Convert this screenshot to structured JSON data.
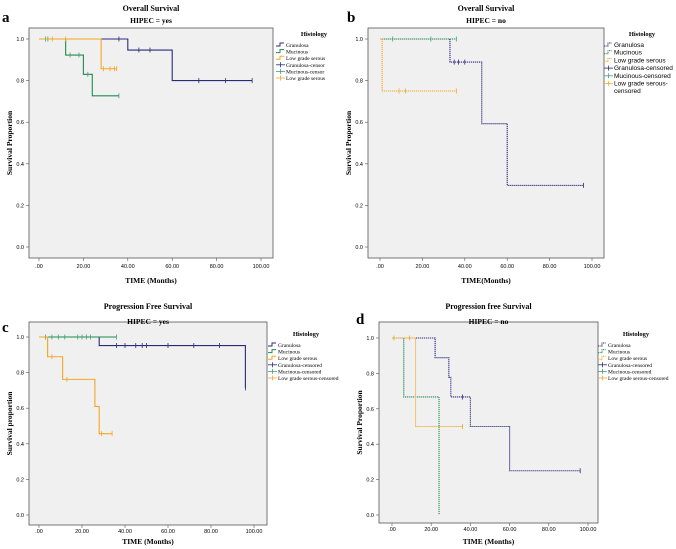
{
  "colors": {
    "granulosa": "#2b2a7a",
    "mucinous": "#1f8c4c",
    "mucinous_censored": "#3aa37a",
    "low_grade_serous": "#f5a623",
    "plot_bg": "#f0f0f0"
  },
  "chart_data": [
    {
      "panel": "a",
      "type": "line",
      "step": true,
      "title": "Overall Survival",
      "subtitle": "HIPEC = yes",
      "xlabel": "TIME (Months)",
      "ylabel": "Survival Proportion",
      "xlim": [
        0,
        100
      ],
      "ylim": [
        0,
        1
      ],
      "xticks": [
        ".00",
        "20.00",
        "40.00",
        "60.00",
        "80.00",
        "100.00"
      ],
      "yticks": [
        "0.0",
        "0.2",
        "0.4",
        "0.6",
        "0.8",
        "1.0"
      ],
      "line_style": "solid",
      "legend_title": "Histology",
      "legend_position": "right",
      "legend": [
        "Granulosa",
        "Mucinous",
        "Low grade serous",
        "Granulosa-censor",
        "Mucinous-censor",
        "Low grade serous"
      ],
      "series": [
        {
          "name": "Granulosa",
          "color_key": "granulosa",
          "steps": [
            [
              0,
              1.0
            ],
            [
              40,
              0.947
            ],
            [
              60,
              0.8
            ]
          ],
          "end": 96,
          "censored": [
            [
              36,
              1.0
            ],
            [
              45,
              0.947
            ],
            [
              50,
              0.947
            ],
            [
              72,
              0.8
            ],
            [
              84,
              0.8
            ],
            [
              96,
              0.8
            ]
          ]
        },
        {
          "name": "Mucinous",
          "color_key": "mucinous",
          "steps": [
            [
              0,
              1.0
            ],
            [
              12,
              0.923
            ],
            [
              20,
              0.83
            ],
            [
              24,
              0.727
            ]
          ],
          "end": 36,
          "censored": [
            [
              3,
              1.0
            ],
            [
              4,
              1.0
            ],
            [
              14,
              0.923
            ],
            [
              18,
              0.923
            ],
            [
              22,
              0.83
            ],
            [
              36,
              0.727
            ]
          ]
        },
        {
          "name": "Low grade serous",
          "color_key": "low_grade_serous",
          "steps": [
            [
              0,
              1.0
            ],
            [
              28,
              0.857
            ]
          ],
          "end": 35,
          "censored": [
            [
              6,
              1.0
            ],
            [
              12,
              1.0
            ],
            [
              29,
              0.857
            ],
            [
              32,
              0.857
            ],
            [
              34,
              0.857
            ],
            [
              35,
              0.857
            ]
          ]
        }
      ]
    },
    {
      "panel": "b",
      "type": "line",
      "step": true,
      "title": "Overall Survival",
      "subtitle": "HIPEC = no",
      "xlabel": "TIME(Months)",
      "ylabel": "Survival Proportion",
      "xlim": [
        0,
        100
      ],
      "ylim": [
        0,
        1
      ],
      "xticks": [
        ".00",
        "20.00",
        "40.00",
        "60.00",
        "80.00",
        "100.00"
      ],
      "yticks": [
        "0.0",
        "0.2",
        "0.4",
        "0.6",
        "0.8",
        "1.0"
      ],
      "line_style": "dotted",
      "legend_title": "Histology",
      "legend_position": "right",
      "legend": [
        "Granulosa",
        "Mucinous",
        "Low grade serous",
        "Granulosa-censored",
        "Mucinous-censored",
        "Low grade serous-",
        "censored"
      ],
      "series": [
        {
          "name": "Granulosa",
          "color_key": "granulosa",
          "steps": [
            [
              0,
              1.0
            ],
            [
              33,
              0.889
            ],
            [
              48,
              0.593
            ],
            [
              60,
              0.296
            ]
          ],
          "end": 96,
          "censored": [
            [
              35,
              0.889
            ],
            [
              37,
              0.889
            ],
            [
              40,
              0.889
            ],
            [
              96,
              0.296
            ]
          ]
        },
        {
          "name": "Mucinous",
          "color_key": "mucinous",
          "steps": [
            [
              0,
              1.0
            ]
          ],
          "end": 36,
          "censored": [
            [
              6,
              1.0
            ],
            [
              24,
              1.0
            ],
            [
              36,
              1.0
            ]
          ]
        },
        {
          "name": "Low grade serous",
          "color_key": "low_grade_serous",
          "steps": [
            [
              0,
              1.0
            ],
            [
              1,
              0.75
            ]
          ],
          "end": 36,
          "censored": [
            [
              9,
              0.75
            ],
            [
              12,
              0.75
            ],
            [
              36,
              0.75
            ]
          ]
        }
      ]
    },
    {
      "panel": "c",
      "type": "line",
      "step": true,
      "title": "Progression Free Survival",
      "subtitle": "HIPEC = yes",
      "xlabel": "TIME (Months)",
      "ylabel": "Survival proportion",
      "xlim": [
        0,
        100
      ],
      "ylim": [
        0,
        1
      ],
      "xticks": [
        ".00",
        "20.00",
        "40.00",
        "60.00",
        "80.00",
        "100.00"
      ],
      "yticks": [
        "0.0",
        "0.2",
        "0.4",
        "0.6",
        "0.8",
        "1.0"
      ],
      "line_style": "solid",
      "legend_title": "Histology",
      "legend_position": "right",
      "legend": [
        "Granulosa",
        "Mucinous",
        "Low grade serous",
        "Granulosa-censored",
        "Mucinous-censored",
        "Low grade serous-censored"
      ],
      "series": [
        {
          "name": "Granulosa",
          "color_key": "granulosa",
          "steps": [
            [
              0,
              1.0
            ],
            [
              28,
              0.952
            ],
            [
              96,
              0.714
            ]
          ],
          "end": 96,
          "censored": [
            [
              36,
              0.952
            ],
            [
              40,
              0.952
            ],
            [
              45,
              0.952
            ],
            [
              48,
              0.952
            ],
            [
              50,
              0.952
            ],
            [
              60,
              0.952
            ],
            [
              72,
              0.952
            ],
            [
              84,
              0.952
            ],
            [
              96,
              0.714
            ]
          ]
        },
        {
          "name": "Mucinous",
          "color_key": "mucinous",
          "steps": [
            [
              0,
              1.0
            ]
          ],
          "end": 36,
          "censored": [
            [
              3,
              1.0
            ],
            [
              6,
              1.0
            ],
            [
              9,
              1.0
            ],
            [
              12,
              1.0
            ],
            [
              18,
              1.0
            ],
            [
              20,
              1.0
            ],
            [
              22,
              1.0
            ],
            [
              24,
              1.0
            ],
            [
              36,
              1.0
            ]
          ]
        },
        {
          "name": "Low grade serous",
          "color_key": "low_grade_serous",
          "steps": [
            [
              0,
              1.0
            ],
            [
              4,
              0.889
            ],
            [
              11,
              0.762
            ],
            [
              26,
              0.61
            ],
            [
              28,
              0.457
            ]
          ],
          "end": 34,
          "censored": [
            [
              6,
              0.889
            ],
            [
              13,
              0.762
            ],
            [
              29,
              0.457
            ],
            [
              34,
              0.457
            ]
          ]
        }
      ]
    },
    {
      "panel": "d",
      "type": "line",
      "step": true,
      "title": "Progression free Survival",
      "subtitle": "HIPEC = no",
      "xlabel": "TIME (Months)",
      "ylabel": "Survival Proportion",
      "xlim": [
        0,
        100
      ],
      "ylim": [
        0,
        1
      ],
      "xticks": [
        ".00",
        "20.00",
        "40.00",
        "60.00",
        "80.00",
        "100.00"
      ],
      "yticks": [
        "0.0",
        "0.2",
        "0.4",
        "0.6",
        "0.8",
        "1.0"
      ],
      "line_style": "dotted",
      "legend_title": "Histology",
      "legend_position": "right",
      "legend": [
        "Granulosa",
        "Mucinous",
        "Low grade serous",
        "Granulosa-censored",
        "Mucinous-censored",
        "Low grade serous-censored"
      ],
      "series": [
        {
          "name": "Granulosa",
          "color_key": "granulosa",
          "steps": [
            [
              0,
              1.0
            ],
            [
              22,
              0.889
            ],
            [
              29,
              0.778
            ],
            [
              30,
              0.667
            ],
            [
              40,
              0.5
            ],
            [
              60,
              0.25
            ]
          ],
          "end": 96,
          "censored": [
            [
              36,
              0.667
            ],
            [
              96,
              0.25
            ]
          ]
        },
        {
          "name": "Mucinous",
          "color_key": "mucinous",
          "steps": [
            [
              0,
              1.0
            ],
            [
              6,
              0.667
            ],
            [
              24,
              0.0
            ]
          ],
          "end": 24,
          "censored": []
        },
        {
          "name": "Low grade serous",
          "color_key": "low_grade_serous",
          "steps": [
            [
              0,
              1.0
            ],
            [
              12,
              0.5
            ]
          ],
          "end": 36,
          "censored": [
            [
              1,
              1.0
            ],
            [
              9,
              1.0
            ],
            [
              36,
              0.5
            ]
          ]
        }
      ]
    }
  ]
}
